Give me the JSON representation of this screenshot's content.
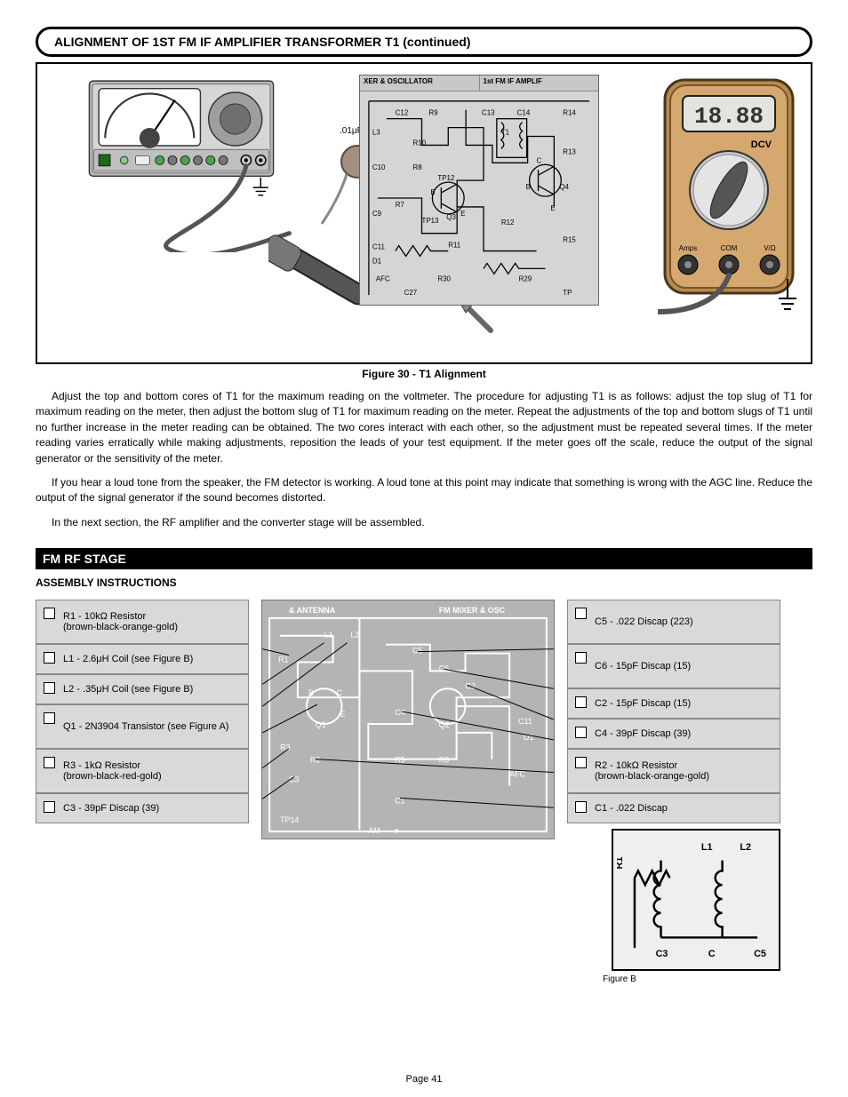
{
  "header": "ALIGNMENT OF 1ST FM IF AMPLIFIER TRANSFORMER T1 (continued)",
  "figure": {
    "sig_gen_caption": "Figure 30 - T1 Alignment",
    "coupling_cap_label": ".01μF",
    "schematic_header_left": "XER & OSCILLATOR",
    "schematic_header_right": "1st FM IF AMPLIF",
    "schematic_labels": [
      "C12",
      "R9",
      "C13",
      "C14",
      "R14",
      "L3",
      "R10",
      "C10",
      "R8",
      "TP12",
      "T1",
      "C",
      "B",
      "R13",
      "Q4",
      "R7",
      "TP13",
      "E",
      "B",
      "C9",
      "Q3",
      "E",
      "R12",
      "C11",
      "D1",
      "R11",
      "R15",
      "AFC",
      "R30",
      "R29",
      "C27",
      "TP"
    ],
    "multimeter_display": "18.88",
    "multimeter_mode": "DCV",
    "multimeter_jacks": [
      "Amps",
      "COM",
      "V/Ω"
    ]
  },
  "paragraphs": [
    "Adjust the top and bottom cores of T1 for the maximum reading on the voltmeter. The procedure for adjusting T1 is as follows: adjust the top slug of T1 for maximum reading on the meter, then adjust the bottom slug of T1 for maximum reading on the meter. Repeat the adjustments of the top and bottom slugs of T1 until no further increase in the meter reading can be obtained. The two cores interact with each other, so the adjustment must be repeated several times. If the meter reading varies erratically while making adjustments, reposition the leads of your test equipment. If the meter goes off the scale, reduce the output of the signal generator or the sensitivity of the meter.",
    "If you hear a loud tone from the speaker, the FM detector is working. A loud tone at this point may indicate that something is wrong with the AGC line. Reduce the output of the signal generator if the sound becomes distorted.",
    "In the next section, the RF amplifier and the converter stage will be assembled."
  ],
  "section_title": "FM RF STAGE",
  "assembly_left": [
    {
      "label": "R1 - 10kΩ Resistor\n(brown-black-orange-gold)",
      "tall": true
    },
    {
      "label": "L1 - 2.6μH Coil (see Figure B)",
      "tall": false
    },
    {
      "label": "L2 - .35μH Coil (see Figure B)",
      "tall": false
    },
    {
      "label": "Q1 - 2N3904 Transistor (see Figure A)",
      "tall": true
    },
    {
      "label": "R3 - 1kΩ Resistor\n(brown-black-red-gold)",
      "tall": true
    },
    {
      "label": "C3 - 39pF Discap (39)",
      "tall": false
    }
  ],
  "assembly_right": [
    {
      "label": "C5 - .022 Discap (223)",
      "tall": true
    },
    {
      "label": "C6 - 15pF Discap (15)",
      "tall": true
    },
    {
      "label": "C2 - 15pF Discap (15)",
      "tall": false
    },
    {
      "label": "C4 - 39pF Discap (39)",
      "tall": false
    },
    {
      "label": "R2 - 10kΩ Resistor\n(brown-black-orange-gold)",
      "tall": true
    },
    {
      "label": "C1 - .022 Discap",
      "tall": false
    }
  ],
  "pcb_labels_top": [
    "& ANTENNA",
    "FM MIXER & OSC"
  ],
  "pcb_items": [
    "L1",
    "L2",
    "R1",
    "C5",
    "C6",
    "C2",
    "B",
    "C",
    "Q1",
    "E",
    "Q2",
    "C4",
    "C11",
    "D1",
    "R3",
    "R2",
    "C3",
    "R5",
    "R6",
    "AFC",
    "C1",
    "TP14",
    "AM"
  ],
  "figure_b": {
    "labels": [
      "L1",
      "L2",
      "R1",
      "C3",
      "C",
      "C5"
    ],
    "caption": "Figure B"
  },
  "page_number": "Page 41"
}
